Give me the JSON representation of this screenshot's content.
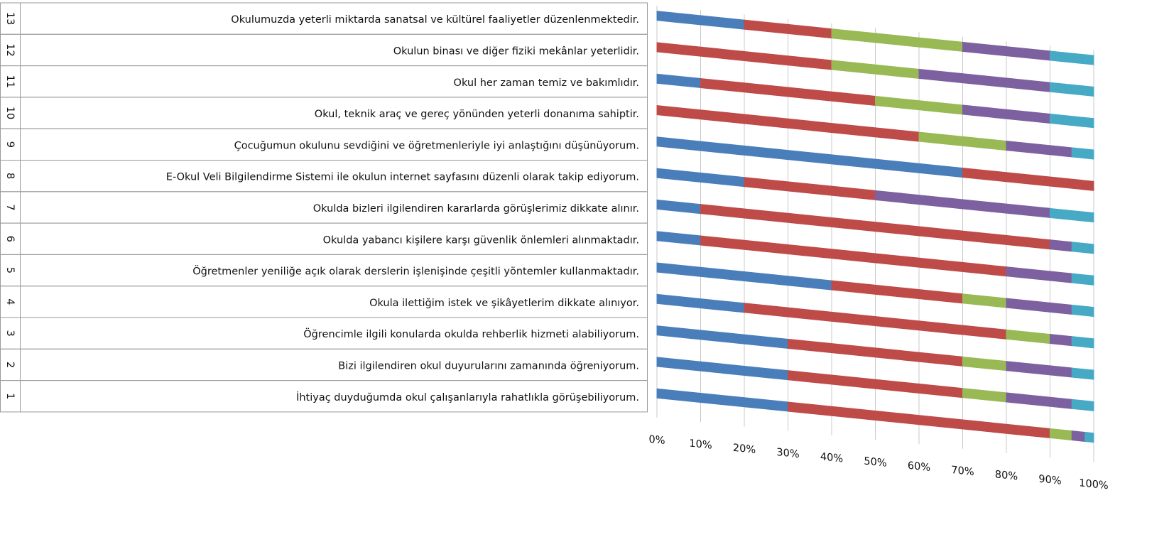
{
  "chart_data": {
    "type": "bar3d_stacked100",
    "category_ids": [
      1,
      2,
      3,
      4,
      5,
      6,
      7,
      8,
      9,
      10,
      11,
      12,
      13
    ],
    "categories": [
      "İhtiyaç duyduğumda okul çalışanlarıyla rahatlıkla görüşebiliyorum.",
      "Bizi ilgilendiren okul duyurularını zamanında öğreniyorum.",
      "Öğrencimle ilgili konularda okulda rehberlik hizmeti alabiliyorum.",
      "Okula ilettiğim istek ve şikâyetlerim dikkate alınıyor.",
      "Öğretmenler yeniliğe açık olarak derslerin işlenişinde çeşitli yöntemler kullanmaktadır.",
      "Okulda yabancı kişilere karşı güvenlik önlemleri alınmaktadır.",
      "Okulda bizleri ilgilendiren kararlarda görüşlerimiz dikkate alınır.",
      "E-Okul Veli Bilgilendirme Sistemi ile okulun internet sayfasını düzenli olarak takip ediyorum.",
      "Çocuğumun okulunu sevdiğini ve öğretmenleriyle iyi anlaştığını düşünüyorum.",
      "Okul, teknik araç ve gereç yönünden yeterli donanıma sahiptir.",
      "Okul her zaman temiz ve bakımlıdır.",
      "Okulun binası ve diğer fiziki mekânlar yeterlidir.",
      "Okulumuzda yeterli miktarda sanatsal ve kültürel faaliyetler düzenlenmektedir."
    ],
    "series": [
      {
        "color": "#4a7ebb",
        "values": [
          30,
          30,
          30,
          20,
          40,
          10,
          10,
          20,
          70,
          0,
          10,
          0,
          20
        ]
      },
      {
        "color": "#be4b48",
        "values": [
          60,
          40,
          40,
          60,
          30,
          70,
          80,
          30,
          30,
          60,
          40,
          40,
          20
        ]
      },
      {
        "color": "#98b954",
        "values": [
          5,
          10,
          10,
          10,
          10,
          0,
          0,
          0,
          0,
          20,
          20,
          20,
          30
        ]
      },
      {
        "color": "#7d60a0",
        "values": [
          3,
          15,
          15,
          5,
          15,
          15,
          5,
          40,
          0,
          15,
          20,
          30,
          20
        ]
      },
      {
        "color": "#46aac5",
        "values": [
          2,
          5,
          5,
          5,
          5,
          5,
          5,
          10,
          0,
          5,
          10,
          10,
          10
        ]
      }
    ],
    "xlim": [
      0,
      100
    ],
    "xticks": [
      {
        "value": 0,
        "label": "0%"
      },
      {
        "value": 10,
        "label": "10%"
      },
      {
        "value": 20,
        "label": "20%"
      },
      {
        "value": 30,
        "label": "30%"
      },
      {
        "value": 40,
        "label": "40%"
      },
      {
        "value": 50,
        "label": "50%"
      },
      {
        "value": 60,
        "label": "60%"
      },
      {
        "value": 70,
        "label": "70%"
      },
      {
        "value": 80,
        "label": "80%"
      },
      {
        "value": 90,
        "label": "90%"
      },
      {
        "value": 100,
        "label": "100%"
      }
    ],
    "grid": true
  }
}
